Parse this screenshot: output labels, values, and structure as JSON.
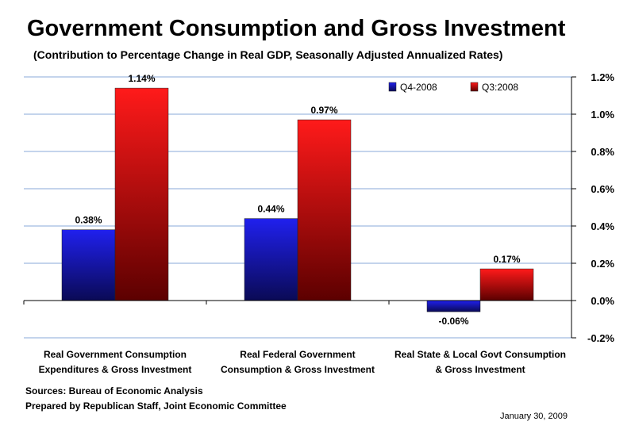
{
  "footer": {
    "source": "Sources: Bureau of Economic Analysis",
    "prepared": "Prepared by Republican Staff, Joint Economic Committee",
    "date": "January 30, 2009"
  },
  "colors": {
    "q4_top": "#2020ee",
    "q4_bottom": "#0a0a55",
    "q3_top": "#ff1a1a",
    "q3_bottom": "#5c0000",
    "axis": "#000000",
    "gridline": "#8aa8d8"
  },
  "chart_data": {
    "type": "bar",
    "title": "Government Consumption and Gross Investment",
    "subtitle": "(Contribution to Percentage Change in Real GDP, Seasonally Adjusted Annualized Rates)",
    "categories": [
      [
        "Real Government Consumption",
        "Expenditures & Gross Investment"
      ],
      [
        "Real Federal Government",
        "Consumption & Gross Investment"
      ],
      [
        "Real State & Local Govt Consumption",
        "& Gross Investment"
      ]
    ],
    "series": [
      {
        "name": "Q4-2008",
        "values": [
          0.38,
          0.44,
          -0.06
        ],
        "labels": [
          "0.38%",
          "0.44%",
          "-0.06%"
        ]
      },
      {
        "name": "Q3:2008",
        "values": [
          1.14,
          0.97,
          0.17
        ],
        "labels": [
          "1.14%",
          "0.97%",
          "0.17%"
        ]
      }
    ],
    "yticks": [
      "1.2%",
      "1.0%",
      "0.8%",
      "0.6%",
      "0.4%",
      "0.2%",
      "0.0%",
      "-0.2%"
    ],
    "ytick_values": [
      1.2,
      1.0,
      0.8,
      0.6,
      0.4,
      0.2,
      0.0,
      -0.2
    ],
    "ylim": [
      -0.2,
      1.2
    ],
    "ylabel": "",
    "xlabel": "",
    "legend_position": "top-right",
    "grid": true
  }
}
